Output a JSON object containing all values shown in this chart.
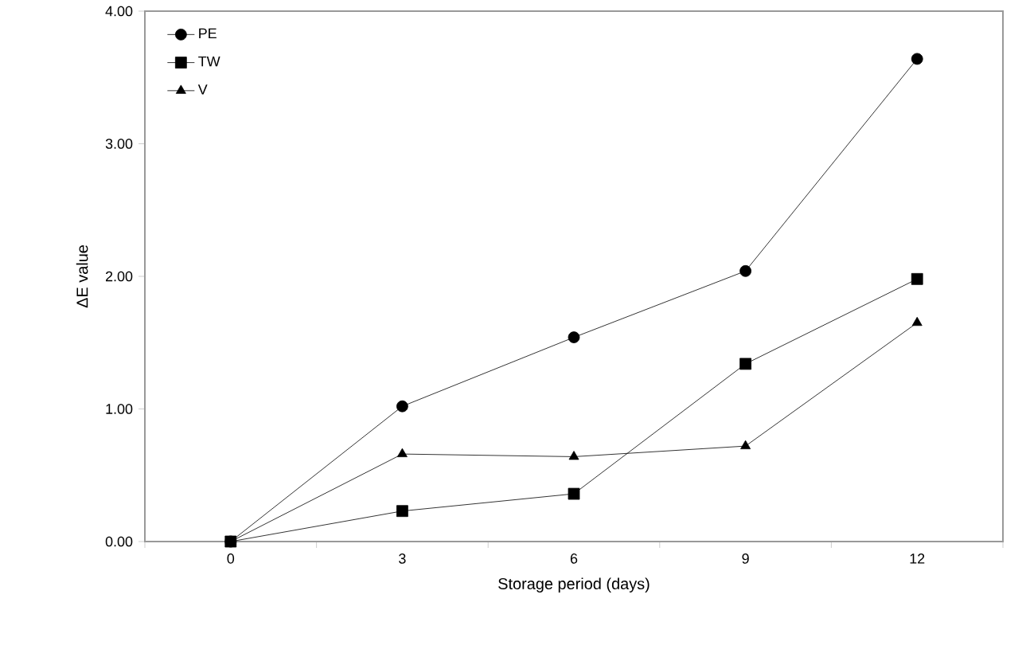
{
  "chart_data": {
    "type": "line",
    "xlabel": "Storage period (days)",
    "ylabel": "ΔE  value",
    "categories": [
      "0",
      "3",
      "6",
      "9",
      "12"
    ],
    "series": [
      {
        "name": "PE",
        "color": "#000000",
        "marker": "circle",
        "values": [
          0,
          1.02,
          1.54,
          2.04,
          3.64
        ]
      },
      {
        "name": "TW",
        "color": "#000000",
        "marker": "square",
        "values": [
          0,
          0.23,
          0.36,
          1.34,
          1.98
        ]
      },
      {
        "name": "V",
        "color": "#000000",
        "marker": "triangle",
        "values": [
          0,
          0.66,
          0.64,
          0.72,
          1.65
        ]
      }
    ],
    "ylim": [
      0,
      4
    ],
    "yticks": [
      {
        "value": 0,
        "label": "0.00"
      },
      {
        "value": 1,
        "label": "1.00"
      },
      {
        "value": 2,
        "label": "2.00"
      },
      {
        "value": 3,
        "label": "3.00"
      },
      {
        "value": 4,
        "label": "4.00"
      }
    ],
    "legend": "top left",
    "line_style": "solid"
  }
}
